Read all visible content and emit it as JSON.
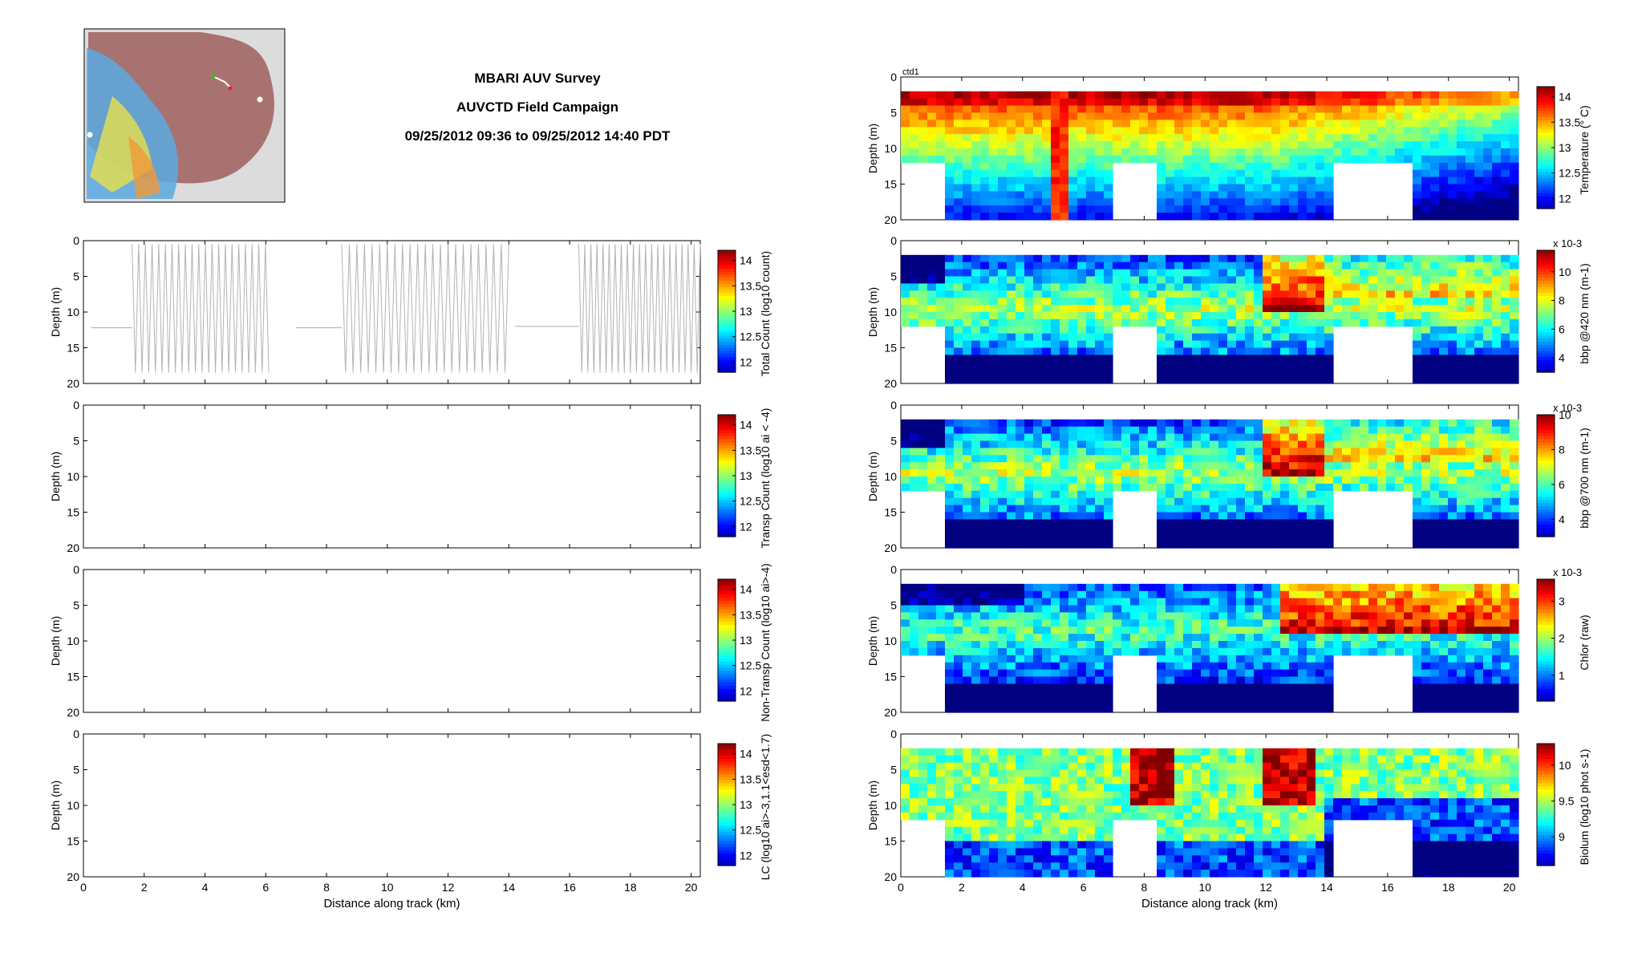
{
  "header": {
    "title": "MBARI AUV Survey",
    "subtitle": "AUVCTD Field Campaign",
    "time_range": "09/25/2012 09:36 to 09/25/2012 14:40 PDT"
  },
  "colors": {
    "map_land": "#a87270",
    "map_bg": "#dcdcdc",
    "track_gray": "#b3b3b3",
    "axis": "#000000"
  },
  "chart_data": [
    {
      "type": "line",
      "panel": "left-1",
      "ylabel": "Depth (m)",
      "colorbar_label": "Total Count (log10 count)",
      "colorbar_ticks": [
        "12",
        "12.5",
        "13",
        "13.5",
        "14"
      ],
      "xlim": [
        0,
        20.3
      ],
      "ylim": [
        20,
        0
      ],
      "xticks": [
        "0",
        "2",
        "4",
        "6",
        "8",
        "10",
        "12",
        "14",
        "16",
        "18",
        "20"
      ],
      "yticks": [
        "0",
        "5",
        "10",
        "15",
        "20"
      ],
      "series": [
        {
          "kind": "yoyo-segments",
          "segments": [
            {
              "x0": 1.6,
              "x1": 6.1,
              "n": 41
            },
            {
              "x0": 8.5,
              "x1": 14.0,
              "n": 44
            },
            {
              "x0": 16.3,
              "x1": 20.3,
              "n": 40
            }
          ],
          "level_segments": [
            {
              "x0": 0.25,
              "x1": 1.6,
              "depth": 12.2
            },
            {
              "x0": 7.0,
              "x1": 8.5,
              "depth": 12.2
            },
            {
              "x0": 14.2,
              "x1": 16.3,
              "depth": 12.0
            }
          ]
        }
      ]
    },
    {
      "type": "line",
      "panel": "left-2",
      "ylabel": "Depth (m)",
      "colorbar_label": "Transp Count (log10 ai < -4)",
      "colorbar_ticks": [
        "12",
        "12.5",
        "13",
        "13.5",
        "14"
      ],
      "xlim": [
        0,
        20.3
      ],
      "ylim": [
        20,
        0
      ],
      "yticks": [
        "0",
        "5",
        "10",
        "15",
        "20"
      ]
    },
    {
      "type": "line",
      "panel": "left-3",
      "ylabel": "Depth (m)",
      "colorbar_label": "Non-Transp Count (log10 ai>-4)",
      "colorbar_ticks": [
        "12",
        "12.5",
        "13",
        "13.5",
        "14"
      ],
      "xlim": [
        0,
        20.3
      ],
      "ylim": [
        20,
        0
      ],
      "yticks": [
        "0",
        "5",
        "10",
        "15",
        "20"
      ]
    },
    {
      "type": "line",
      "panel": "left-4",
      "ylabel": "Depth (m)",
      "xlabel": "Distance along track (km)",
      "colorbar_label": "LC (log10 ai>-3,1.1<esd<1.7)",
      "colorbar_ticks": [
        "12",
        "12.5",
        "13",
        "13.5",
        "14"
      ],
      "xlim": [
        0,
        20.3
      ],
      "ylim": [
        20,
        0
      ],
      "xticks": [
        "0",
        "2",
        "4",
        "6",
        "8",
        "10",
        "12",
        "14",
        "16",
        "18",
        "20"
      ],
      "yticks": [
        "0",
        "5",
        "10",
        "15",
        "20"
      ]
    },
    {
      "type": "heatmap",
      "panel": "right-1",
      "label": "ctd1",
      "ylabel": "Depth (m)",
      "colorbar_label": "Temperature (° C)",
      "colorbar_ticks": [
        "12",
        "12.5",
        "13",
        "13.5",
        "14"
      ],
      "xlim": [
        0,
        20.3
      ],
      "ylim": [
        20,
        0
      ],
      "yticks": [
        "0",
        "5",
        "10",
        "15",
        "20"
      ],
      "profile": "temperature",
      "vmin": 11.8,
      "vmax": 14.2,
      "surface_depth": 2,
      "bottom_depth": 20,
      "gaps": [
        [
          0.0,
          1.4,
          12
        ],
        [
          7.0,
          8.3,
          12
        ],
        [
          14.2,
          16.8,
          12
        ]
      ]
    },
    {
      "type": "heatmap",
      "panel": "right-2",
      "ylabel": "Depth (m)",
      "colorbar_label": "bbp @420 nm (m-1)",
      "colorbar_exponent": "x 10-3",
      "colorbar_ticks": [
        "4",
        "6",
        "8",
        "10"
      ],
      "xlim": [
        0,
        20.3
      ],
      "ylim": [
        20,
        0
      ],
      "yticks": [
        "0",
        "5",
        "10",
        "15",
        "20"
      ],
      "profile": "bbp",
      "vmin": 3,
      "vmax": 11.5
    },
    {
      "type": "heatmap",
      "panel": "right-3",
      "ylabel": "Depth (m)",
      "colorbar_label": "bbp @700 nm (m-1)",
      "colorbar_exponent": "x 10-3",
      "colorbar_ticks": [
        "4",
        "6",
        "8",
        "10"
      ],
      "xlim": [
        0,
        20.3
      ],
      "ylim": [
        20,
        0
      ],
      "yticks": [
        "0",
        "5",
        "10",
        "15",
        "20"
      ],
      "profile": "bbp",
      "vmin": 3,
      "vmax": 10
    },
    {
      "type": "heatmap",
      "panel": "right-4",
      "ylabel": "Depth (m)",
      "colorbar_label": "Chlor (raw)",
      "colorbar_exponent": "x 10-3",
      "colorbar_ticks": [
        "1",
        "2",
        "3"
      ],
      "xlim": [
        0,
        20.3
      ],
      "ylim": [
        20,
        0
      ],
      "yticks": [
        "0",
        "5",
        "10",
        "15",
        "20"
      ],
      "profile": "chlor",
      "vmin": 0.3,
      "vmax": 3.6
    },
    {
      "type": "heatmap",
      "panel": "right-5",
      "ylabel": "Depth (m)",
      "xlabel": "Distance along track (km)",
      "colorbar_label": "Biolum (log10 phot s-1)",
      "colorbar_ticks": [
        "9",
        "9.5",
        "10"
      ],
      "xlim": [
        0,
        20.3
      ],
      "ylim": [
        20,
        0
      ],
      "xticks": [
        "0",
        "2",
        "4",
        "6",
        "8",
        "10",
        "12",
        "14",
        "16",
        "18",
        "20"
      ],
      "yticks": [
        "0",
        "5",
        "10",
        "15",
        "20"
      ],
      "profile": "biolum",
      "vmin": 8.6,
      "vmax": 10.3
    }
  ]
}
